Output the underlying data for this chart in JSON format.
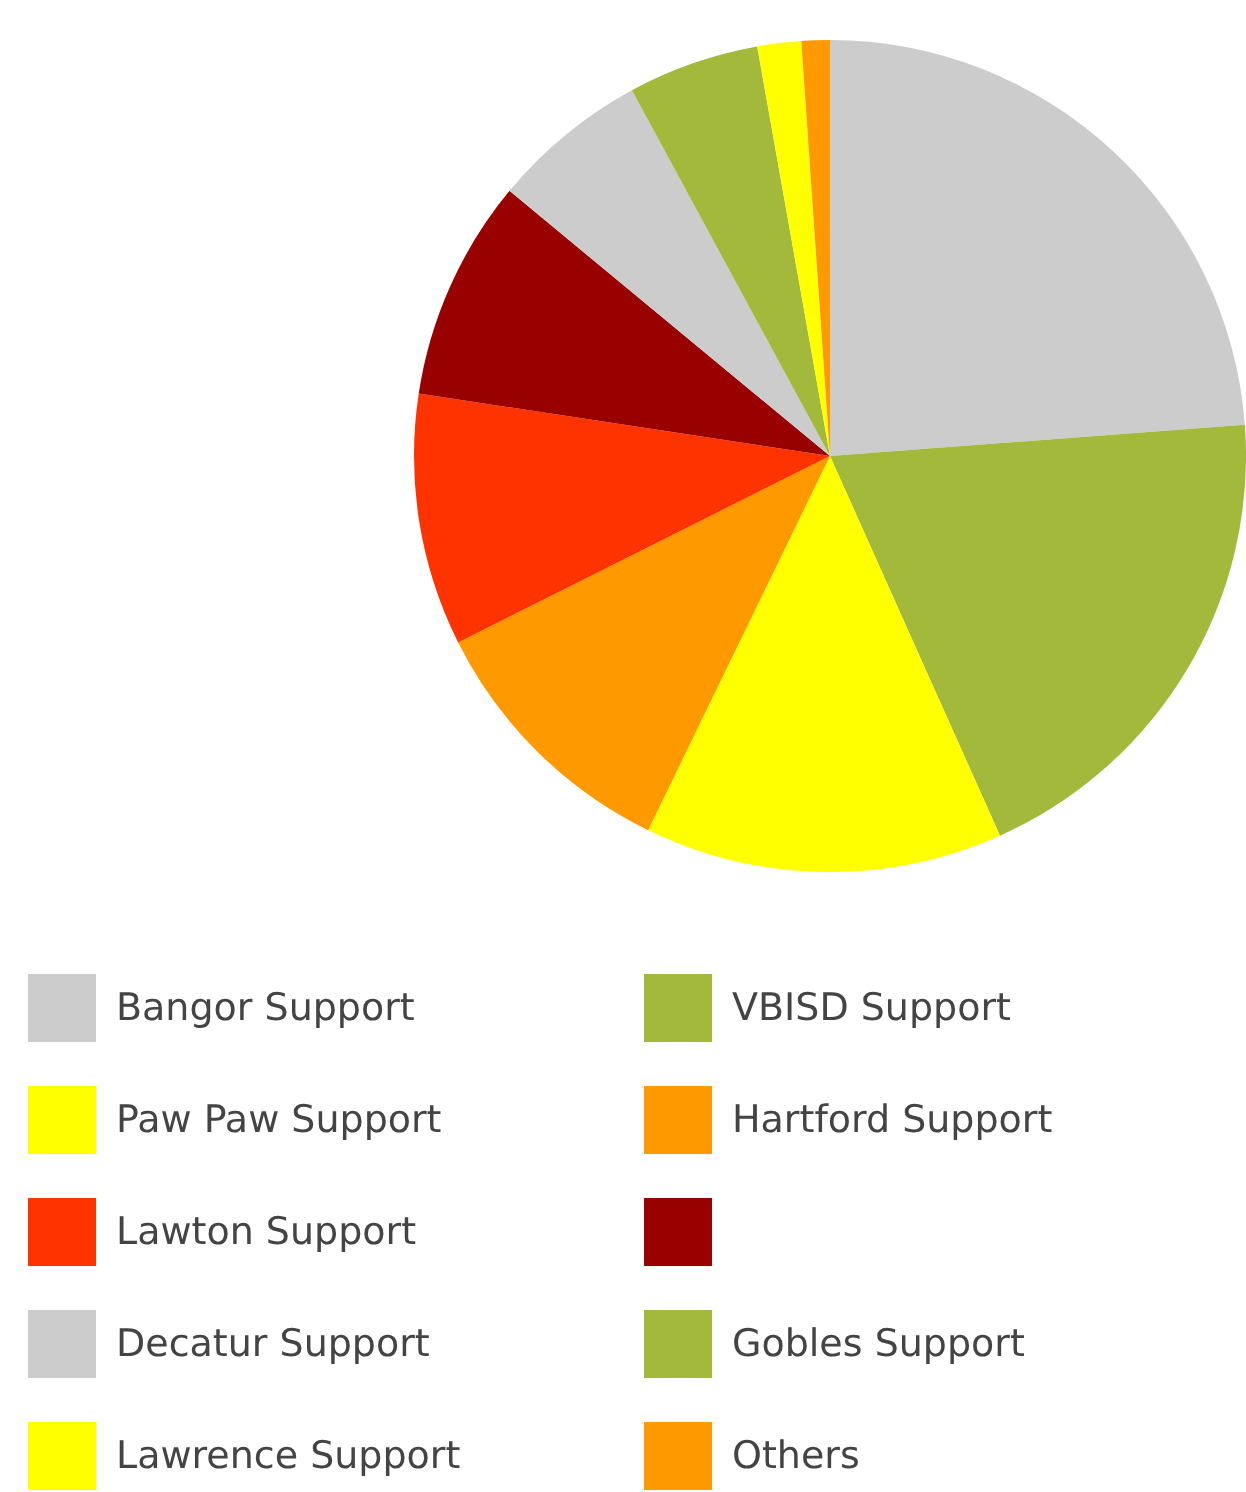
{
  "chart_data": {
    "type": "pie",
    "categories": [
      "Bangor Support",
      "VBISD Support",
      "Paw Paw Support",
      "Hartford Support",
      "Lawton Support",
      null,
      "Decatur Support",
      "Gobles Support",
      "Lawrence Support",
      "Others"
    ],
    "values": [
      23.8,
      19.5,
      13.9,
      10.4,
      9.8,
      8.6,
      6.1,
      5.1,
      1.7,
      1.1
    ],
    "colors": [
      "#cccccc",
      "#a2b93c",
      "#ffff00",
      "#ff9900",
      "#ff3300",
      "#990000",
      "#cccccc",
      "#a2b93c",
      "#ffff00",
      "#ff9900"
    ],
    "legend": "bottom"
  }
}
